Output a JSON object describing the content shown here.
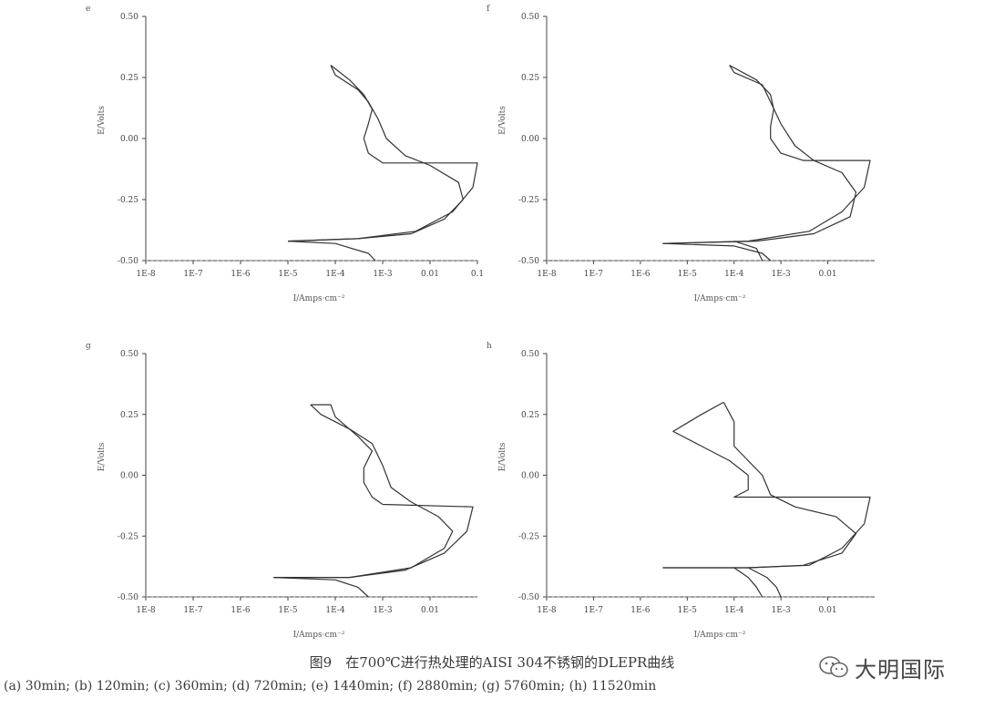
{
  "figure": {
    "caption": "图9　在700℃进行热处理的AISI 304不锈钢的DLEPR曲线",
    "subcaption": "(a) 30min; (b) 120min; (c) 360min; (d) 720min; (e) 1440min; (f) 2880min; (g) 5760min; (h) 11520min",
    "watermark": "大明国际"
  },
  "chart_data": [
    {
      "type": "line",
      "panel_label": "e",
      "xlabel": "I/Amps·cm⁻²",
      "ylabel": "E/Volts",
      "x_scale": "log",
      "xlim": [
        1e-08,
        0.1
      ],
      "ylim": [
        -0.5,
        0.5
      ],
      "x_ticks": [
        "1E-8",
        "1E-7",
        "1E-6",
        "1E-5",
        "1E-4",
        "1E-3",
        "0.01",
        "0.1"
      ],
      "y_ticks": [
        "-0.50",
        "-0.25",
        "0.00",
        "0.25",
        "0.50"
      ],
      "series": [
        {
          "values": [
            [
              8e-05,
              0.3
            ],
            [
              0.0002,
              0.24
            ],
            [
              0.0004,
              0.18
            ],
            [
              0.0006,
              0.12
            ],
            [
              0.0005,
              0.06
            ],
            [
              0.0004,
              0.0
            ],
            [
              0.0005,
              -0.06
            ],
            [
              0.001,
              -0.1
            ],
            [
              0.1,
              -0.1
            ],
            [
              0.08,
              -0.2
            ],
            [
              0.03,
              -0.3
            ],
            [
              0.005,
              -0.38
            ],
            [
              0.0003,
              -0.41
            ],
            [
              1e-05,
              -0.42
            ]
          ]
        },
        {
          "values": [
            [
              8e-05,
              0.3
            ],
            [
              0.0001,
              0.26
            ],
            [
              0.0003,
              0.2
            ],
            [
              0.0005,
              0.15
            ],
            [
              0.0008,
              0.08
            ],
            [
              0.0012,
              0.0
            ],
            [
              0.003,
              -0.07
            ],
            [
              0.01,
              -0.11
            ],
            [
              0.04,
              -0.18
            ],
            [
              0.05,
              -0.25
            ],
            [
              0.02,
              -0.33
            ],
            [
              0.004,
              -0.39
            ],
            [
              0.0003,
              -0.41
            ],
            [
              1e-05,
              -0.42
            ]
          ]
        },
        {
          "values": [
            [
              1e-05,
              -0.42
            ],
            [
              0.0001,
              -0.43
            ],
            [
              0.0005,
              -0.47
            ],
            [
              0.0007,
              -0.5
            ]
          ]
        }
      ]
    },
    {
      "type": "line",
      "panel_label": "f",
      "xlabel": "I/Amps·cm⁻²",
      "ylabel": "E/Volts",
      "x_scale": "log",
      "xlim": [
        1e-08,
        0.1
      ],
      "ylim": [
        -0.5,
        0.5
      ],
      "x_ticks": [
        "1E-8",
        "1E-7",
        "1E-6",
        "1E-5",
        "1E-4",
        "1E-3",
        "0.01"
      ],
      "y_ticks": [
        "-0.50",
        "-0.25",
        "0.00",
        "0.25",
        "0.50"
      ],
      "series": [
        {
          "values": [
            [
              8e-05,
              0.3
            ],
            [
              0.0003,
              0.24
            ],
            [
              0.0006,
              0.18
            ],
            [
              0.0007,
              0.12
            ],
            [
              0.0006,
              0.05
            ],
            [
              0.0006,
              0.0
            ],
            [
              0.001,
              -0.06
            ],
            [
              0.003,
              -0.09
            ],
            [
              0.08,
              -0.09
            ],
            [
              0.06,
              -0.2
            ],
            [
              0.02,
              -0.3
            ],
            [
              0.004,
              -0.38
            ],
            [
              0.0002,
              -0.42
            ],
            [
              3e-06,
              -0.43
            ]
          ]
        },
        {
          "values": [
            [
              8e-05,
              0.3
            ],
            [
              0.0001,
              0.27
            ],
            [
              0.0004,
              0.22
            ],
            [
              0.0006,
              0.15
            ],
            [
              0.001,
              0.06
            ],
            [
              0.002,
              -0.03
            ],
            [
              0.005,
              -0.09
            ],
            [
              0.02,
              -0.14
            ],
            [
              0.04,
              -0.22
            ],
            [
              0.03,
              -0.32
            ],
            [
              0.005,
              -0.39
            ],
            [
              0.0003,
              -0.42
            ],
            [
              3e-06,
              -0.43
            ]
          ]
        },
        {
          "values": [
            [
              3e-06,
              -0.43
            ],
            [
              0.0001,
              -0.44
            ],
            [
              0.0004,
              -0.47
            ],
            [
              0.0006,
              -0.5
            ]
          ]
        },
        {
          "values": [
            [
              0.0001,
              -0.42
            ],
            [
              0.0003,
              -0.45
            ],
            [
              0.0004,
              -0.5
            ]
          ]
        }
      ]
    },
    {
      "type": "line",
      "panel_label": "g",
      "xlabel": "I/Amps·cm⁻²",
      "ylabel": "E/Volts",
      "x_scale": "log",
      "xlim": [
        1e-08,
        0.1
      ],
      "ylim": [
        -0.5,
        0.5
      ],
      "x_ticks": [
        "1E-8",
        "1E-7",
        "1E-6",
        "1E-5",
        "1E-4",
        "1E-3",
        "0.01"
      ],
      "y_ticks": [
        "-0.50",
        "-0.25",
        "0.00",
        "0.25",
        "0.50"
      ],
      "series": [
        {
          "values": [
            [
              3e-05,
              0.29
            ],
            [
              8e-05,
              0.29
            ],
            [
              0.0001,
              0.24
            ],
            [
              0.0003,
              0.16
            ],
            [
              0.0006,
              0.1
            ],
            [
              0.0004,
              0.03
            ],
            [
              0.0004,
              -0.03
            ],
            [
              0.0006,
              -0.09
            ],
            [
              0.001,
              -0.12
            ],
            [
              0.08,
              -0.13
            ],
            [
              0.06,
              -0.23
            ],
            [
              0.02,
              -0.32
            ],
            [
              0.003,
              -0.39
            ],
            [
              0.0002,
              -0.42
            ],
            [
              5e-06,
              -0.42
            ]
          ]
        },
        {
          "values": [
            [
              3e-05,
              0.29
            ],
            [
              5e-05,
              0.25
            ],
            [
              0.0002,
              0.19
            ],
            [
              0.0006,
              0.13
            ],
            [
              0.001,
              0.04
            ],
            [
              0.0015,
              -0.05
            ],
            [
              0.004,
              -0.11
            ],
            [
              0.015,
              -0.17
            ],
            [
              0.03,
              -0.23
            ],
            [
              0.02,
              -0.3
            ],
            [
              0.004,
              -0.38
            ],
            [
              0.0002,
              -0.42
            ],
            [
              5e-06,
              -0.42
            ]
          ]
        },
        {
          "values": [
            [
              5e-06,
              -0.42
            ],
            [
              0.0001,
              -0.43
            ],
            [
              0.0003,
              -0.46
            ],
            [
              0.0005,
              -0.5
            ]
          ]
        }
      ]
    },
    {
      "type": "line",
      "panel_label": "h",
      "xlabel": "I/Amps·cm⁻²",
      "ylabel": "E/Volts",
      "x_scale": "log",
      "xlim": [
        1e-08,
        0.1
      ],
      "ylim": [
        -0.5,
        0.5
      ],
      "x_ticks": [
        "1E-8",
        "1E-7",
        "1E-6",
        "1E-5",
        "1E-4",
        "1E-3",
        "0.01"
      ],
      "y_ticks": [
        "-0.50",
        "-0.25",
        "0.00",
        "0.25",
        "0.50"
      ],
      "series": [
        {
          "values": [
            [
              6e-05,
              0.3
            ],
            [
              2e-05,
              0.25
            ],
            [
              5e-06,
              0.18
            ],
            [
              2e-05,
              0.12
            ],
            [
              8e-05,
              0.06
            ],
            [
              0.0002,
              0.0
            ],
            [
              0.0002,
              -0.06
            ],
            [
              0.0001,
              -0.09
            ],
            [
              0.08,
              -0.09
            ],
            [
              0.06,
              -0.2
            ],
            [
              0.02,
              -0.3
            ],
            [
              0.004,
              -0.37
            ],
            [
              0.0002,
              -0.38
            ],
            [
              3e-06,
              -0.38
            ]
          ]
        },
        {
          "values": [
            [
              6e-05,
              0.3
            ],
            [
              0.0001,
              0.22
            ],
            [
              0.0001,
              0.12
            ],
            [
              0.0002,
              0.06
            ],
            [
              0.0004,
              0.0
            ],
            [
              0.0006,
              -0.08
            ],
            [
              0.002,
              -0.13
            ],
            [
              0.015,
              -0.17
            ],
            [
              0.04,
              -0.24
            ],
            [
              0.02,
              -0.32
            ],
            [
              0.003,
              -0.37
            ],
            [
              0.0002,
              -0.38
            ],
            [
              3e-06,
              -0.38
            ]
          ]
        },
        {
          "values": [
            [
              0.0001,
              -0.38
            ],
            [
              0.0002,
              -0.42
            ],
            [
              0.0003,
              -0.46
            ],
            [
              0.0004,
              -0.5
            ]
          ]
        },
        {
          "values": [
            [
              0.0002,
              -0.38
            ],
            [
              0.0005,
              -0.42
            ],
            [
              0.0008,
              -0.46
            ],
            [
              0.001,
              -0.5
            ]
          ]
        }
      ]
    }
  ]
}
